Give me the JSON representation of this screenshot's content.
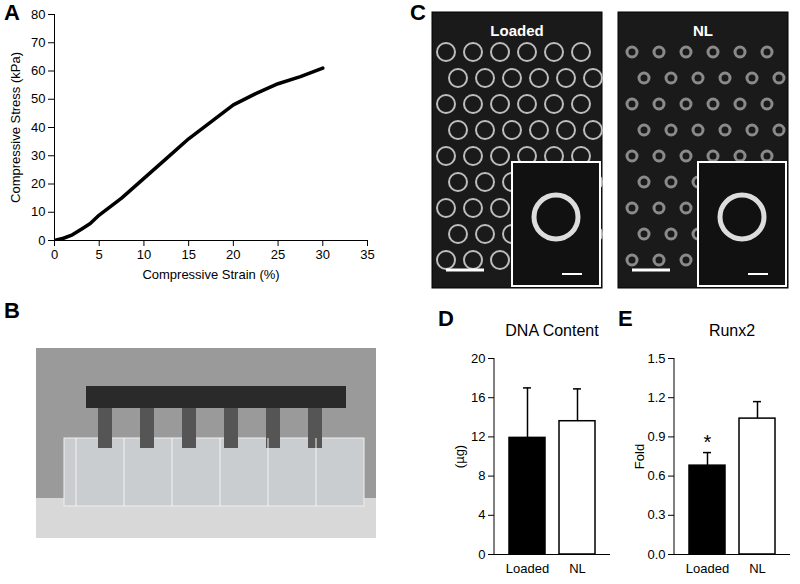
{
  "chart_data": [
    {
      "type": "line",
      "panel": "A",
      "xlabel": "Compressive Strain (%)",
      "ylabel": "Compressive Stress (kPa)",
      "x": [
        0,
        1,
        2,
        3,
        4,
        5,
        7.5,
        10,
        12.5,
        15,
        17.5,
        20,
        22.5,
        25,
        27.5,
        30
      ],
      "values": [
        0,
        0.8,
        2,
        4,
        6,
        9,
        15,
        22,
        29,
        36,
        42,
        48,
        52,
        55.5,
        58,
        61
      ],
      "color": "#000000",
      "xlim": [
        0,
        35
      ],
      "xticks": [
        0,
        5,
        10,
        15,
        20,
        25,
        30,
        35
      ],
      "ylim": [
        0,
        80
      ],
      "yticks": [
        0,
        10,
        20,
        30,
        40,
        50,
        60,
        70,
        80
      ]
    },
    {
      "type": "bar",
      "panel": "D",
      "title": "DNA Content",
      "ylabel": "(µg)",
      "categories": [
        "Loaded",
        "NL"
      ],
      "values": [
        11.9,
        13.6
      ],
      "errors": [
        5.1,
        3.3
      ],
      "colors": [
        "#000000",
        "#ffffff"
      ],
      "ylim": [
        0,
        20
      ],
      "yticks": [
        0,
        4,
        8,
        12,
        16,
        20
      ]
    },
    {
      "type": "bar",
      "panel": "E",
      "title": "Runx2",
      "ylabel": "Fold",
      "categories": [
        "Loaded",
        "NL"
      ],
      "values": [
        0.68,
        1.04
      ],
      "errors": [
        0.1,
        0.13
      ],
      "annotations": [
        {
          "text": "*",
          "category": "Loaded"
        }
      ],
      "colors": [
        "#000000",
        "#ffffff"
      ],
      "ylim": [
        0,
        1.5
      ],
      "yticks": [
        {
          "value": 0,
          "label": "0.0"
        },
        0.3,
        0.6,
        0.9,
        1.2,
        1.5
      ]
    }
  ],
  "images": [
    {
      "panel": "B",
      "type": "photo"
    },
    {
      "panel": "C",
      "type": "micrograph",
      "labels": [
        "Loaded",
        "NL"
      ]
    }
  ]
}
